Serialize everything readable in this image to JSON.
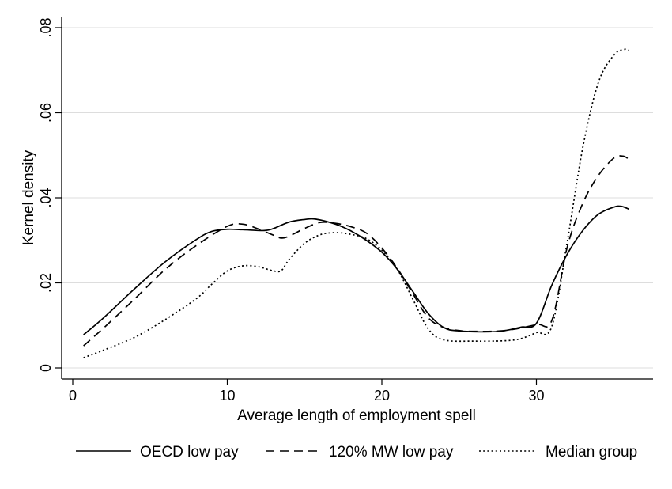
{
  "chart_data": {
    "type": "line",
    "xlabel": "Average length of employment spell",
    "ylabel": "Kernel density",
    "xlim": [
      -0.7,
      37.4
    ],
    "ylim": [
      0,
      0.08
    ],
    "x_ticks": [
      0,
      10,
      20,
      30
    ],
    "y_ticks": [
      0,
      0.02,
      0.04,
      0.06,
      0.08
    ],
    "x_tick_labels": [
      "0",
      "10",
      "20",
      "30"
    ],
    "y_tick_labels": [
      "0",
      ".02",
      ".04",
      ".06",
      ".08"
    ],
    "grid": "horizontal",
    "legend_position": "bottom",
    "series": [
      {
        "name": "OECD low pay",
        "style": "solid",
        "color": "#000000",
        "points": [
          [
            0.7,
            0.0078
          ],
          [
            2,
            0.0118
          ],
          [
            4,
            0.0186
          ],
          [
            6,
            0.025
          ],
          [
            8,
            0.0302
          ],
          [
            9,
            0.0321
          ],
          [
            10,
            0.0326
          ],
          [
            11,
            0.0325
          ],
          [
            12.4,
            0.0323
          ],
          [
            13,
            0.0328
          ],
          [
            14,
            0.0343
          ],
          [
            15,
            0.0349
          ],
          [
            15.7,
            0.035
          ],
          [
            17,
            0.0338
          ],
          [
            18,
            0.0322
          ],
          [
            19,
            0.03
          ],
          [
            20,
            0.0272
          ],
          [
            21,
            0.0232
          ],
          [
            22,
            0.018
          ],
          [
            23,
            0.0128
          ],
          [
            24,
            0.0095
          ],
          [
            25,
            0.0087
          ],
          [
            27,
            0.0085
          ],
          [
            28,
            0.0088
          ],
          [
            29,
            0.0096
          ],
          [
            30,
            0.0105
          ],
          [
            31,
            0.0195
          ],
          [
            32,
            0.0268
          ],
          [
            33,
            0.0323
          ],
          [
            34,
            0.0361
          ],
          [
            35,
            0.0378
          ],
          [
            35.5,
            0.038
          ],
          [
            36,
            0.0373
          ]
        ]
      },
      {
        "name": "120% MW low pay",
        "style": "dashed",
        "color": "#000000",
        "points": [
          [
            0.7,
            0.0052
          ],
          [
            2,
            0.0094
          ],
          [
            4,
            0.0162
          ],
          [
            6,
            0.0232
          ],
          [
            8,
            0.0288
          ],
          [
            10,
            0.0333
          ],
          [
            11,
            0.0338
          ],
          [
            12,
            0.0327
          ],
          [
            13,
            0.0312
          ],
          [
            13.7,
            0.0306
          ],
          [
            15,
            0.0328
          ],
          [
            16,
            0.0342
          ],
          [
            17,
            0.034
          ],
          [
            18,
            0.0332
          ],
          [
            19,
            0.0317
          ],
          [
            20,
            0.0282
          ],
          [
            21,
            0.0234
          ],
          [
            22,
            0.0175
          ],
          [
            23,
            0.0118
          ],
          [
            24,
            0.0095
          ],
          [
            25,
            0.0088
          ],
          [
            26,
            0.0086
          ],
          [
            28,
            0.0088
          ],
          [
            30,
            0.0102
          ],
          [
            31,
            0.0112
          ],
          [
            32,
            0.0285
          ],
          [
            33,
            0.0387
          ],
          [
            34,
            0.0452
          ],
          [
            35,
            0.0493
          ],
          [
            35.6,
            0.0498
          ],
          [
            36,
            0.049
          ]
        ]
      },
      {
        "name": "Median group",
        "style": "dotted",
        "color": "#000000",
        "points": [
          [
            0.7,
            0.0024
          ],
          [
            2,
            0.0042
          ],
          [
            4,
            0.0072
          ],
          [
            6,
            0.0114
          ],
          [
            8,
            0.0163
          ],
          [
            9,
            0.0197
          ],
          [
            10,
            0.0228
          ],
          [
            11,
            0.024
          ],
          [
            12,
            0.0238
          ],
          [
            13,
            0.0228
          ],
          [
            13.5,
            0.0229
          ],
          [
            14,
            0.0255
          ],
          [
            15,
            0.0293
          ],
          [
            16,
            0.0313
          ],
          [
            17,
            0.0318
          ],
          [
            18,
            0.0314
          ],
          [
            19,
            0.0304
          ],
          [
            20,
            0.0277
          ],
          [
            21,
            0.0232
          ],
          [
            22,
            0.0162
          ],
          [
            23,
            0.0092
          ],
          [
            24,
            0.0066
          ],
          [
            26,
            0.0063
          ],
          [
            28,
            0.0064
          ],
          [
            29,
            0.0069
          ],
          [
            30,
            0.0083
          ],
          [
            31,
            0.0098
          ],
          [
            32,
            0.0298
          ],
          [
            33,
            0.0518
          ],
          [
            34,
            0.067
          ],
          [
            35,
            0.0735
          ],
          [
            35.7,
            0.0749
          ],
          [
            36,
            0.0747
          ]
        ]
      }
    ]
  }
}
